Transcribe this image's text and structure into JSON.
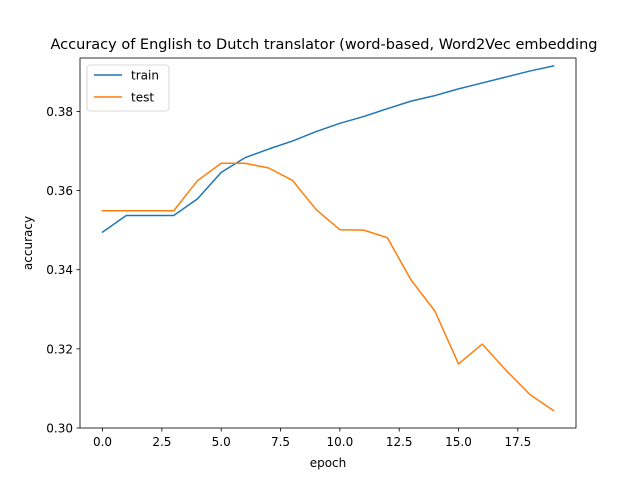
{
  "chart_data": {
    "type": "line",
    "title": "Accuracy of English to Dutch translator (word-based, Word2Vec embedding",
    "xlabel": "epoch",
    "ylabel": "accuracy",
    "xlim": [
      -0.95,
      19.95
    ],
    "ylim": [
      0.3,
      0.3935
    ],
    "xticks": [
      0.0,
      2.5,
      5.0,
      7.5,
      10.0,
      12.5,
      15.0,
      17.5
    ],
    "xtick_labels": [
      "0.0",
      "2.5",
      "5.0",
      "7.5",
      "10.0",
      "12.5",
      "15.0",
      "17.5"
    ],
    "yticks": [
      0.3,
      0.32,
      0.34,
      0.36,
      0.38
    ],
    "ytick_labels": [
      "0.30",
      "0.32",
      "0.34",
      "0.36",
      "0.38"
    ],
    "grid": false,
    "legend_position": "top-left",
    "x": [
      0,
      1,
      2,
      3,
      4,
      5,
      6,
      7,
      8,
      9,
      10,
      11,
      12,
      13,
      14,
      15,
      16,
      17,
      18,
      19
    ],
    "series": [
      {
        "name": "train",
        "color": "#1f77b4",
        "values": [
          0.3495,
          0.3537,
          0.3537,
          0.3537,
          0.3579,
          0.3646,
          0.3683,
          0.3705,
          0.3725,
          0.3749,
          0.377,
          0.3787,
          0.3807,
          0.3826,
          0.384,
          0.3857,
          0.3872,
          0.3887,
          0.3902,
          0.3915
        ]
      },
      {
        "name": "test",
        "color": "#ff7f0e",
        "values": [
          0.3549,
          0.3549,
          0.3549,
          0.3549,
          0.3625,
          0.3669,
          0.3669,
          0.3657,
          0.3626,
          0.3552,
          0.3501,
          0.35,
          0.3481,
          0.3374,
          0.3296,
          0.3162,
          0.3212,
          0.3146,
          0.3085,
          0.3044
        ]
      }
    ]
  }
}
